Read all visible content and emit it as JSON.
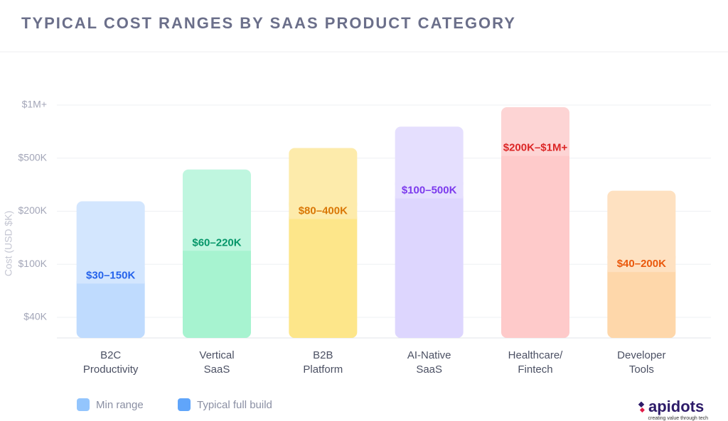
{
  "chart_data": {
    "type": "stacked-bar",
    "title": "TYPICAL COST RANGES BY SAAS PRODUCT CATEGORY",
    "y_label": "Cost (USD $K)",
    "categories": [
      [
        "B2C",
        "Productivity"
      ],
      [
        "Vertical",
        "SaaS"
      ],
      [
        "B2B",
        "Platform"
      ],
      [
        "AI-Native",
        "SaaS"
      ],
      [
        "Healthcare/",
        "Fintech"
      ],
      [
        "Developer",
        "Tools"
      ]
    ],
    "series": [
      {
        "name": "Min range",
        "color": "#93c5fd",
        "values": [
          87,
          140,
          200,
          316,
          595,
          100
        ],
        "colors": [
          "#bfdbfe",
          "#a7f3d0",
          "#fde68a",
          "#ddd6fe",
          "#fecaca",
          "#fed7aa"
        ]
      },
      {
        "name": "Typical full build",
        "color": "#60a5fa",
        "values": [
          169,
          296,
          395,
          481,
          385,
          216
        ],
        "colors": [
          "#d3e6fe",
          "#bff6df",
          "#fdebab",
          "#e5dffe",
          "#fdd4d4",
          "#fee1c1"
        ]
      }
    ],
    "range_labels": [
      "$30–150K",
      "$60–220K",
      "$80–400K",
      "$100–500K",
      "$200K–$1M+",
      "$40–200K"
    ],
    "range_label_colors": [
      "#2563eb",
      "#059669",
      "#d97706",
      "#7c3aed",
      "#dc2626",
      "#ea580c"
    ],
    "ylim": [
      0,
      1000
    ],
    "yticks": [
      {
        "value": 40,
        "label": "$40K"
      },
      {
        "value": 100,
        "label": "$100K"
      },
      {
        "value": 200,
        "label": "$200K"
      },
      {
        "value": 500,
        "label": "$500K"
      },
      {
        "value": 1000,
        "label": "$1M+"
      }
    ],
    "grid": true,
    "logo": {
      "name": "apidots",
      "tagline": "creating value through tech"
    }
  }
}
